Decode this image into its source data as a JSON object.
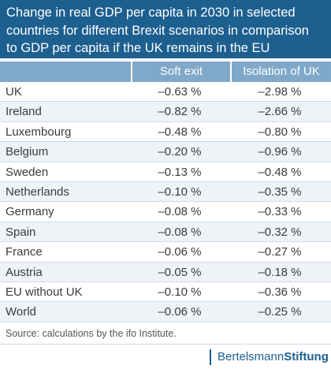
{
  "title_lines": [
    "Change in real GDP per capita in 2030 in selected",
    "countries for different Brexit scenarios in comparison",
    "to GDP per capita if the UK remains in the EU"
  ],
  "columns": [
    "",
    "Soft exit",
    "Isolation of UK"
  ],
  "rows": [
    [
      "UK",
      "–0.63 %",
      "–2.98 %"
    ],
    [
      "Ireland",
      "–0.82 %",
      "–2.66 %"
    ],
    [
      "Luxembourg",
      "–0.48 %",
      "–0.80 %"
    ],
    [
      "Belgium",
      "–0.20 %",
      "–0.96 %"
    ],
    [
      "Sweden",
      "–0.13 %",
      "–0.48 %"
    ],
    [
      "Netherlands",
      "–0.10 %",
      "–0.35 %"
    ],
    [
      "Germany",
      "–0.08 %",
      "–0.33 %"
    ],
    [
      "Spain",
      "–0.08 %",
      "–0.32 %"
    ],
    [
      "France",
      "–0.06 %",
      "–0.27 %"
    ],
    [
      "Austria",
      "–0.05 %",
      "–0.18 %"
    ],
    [
      "EU without UK",
      "–0.10 %",
      "–0.36 %"
    ],
    [
      "World",
      "–0.06 %",
      "–0.25 %"
    ]
  ],
  "source": "Source: calculations by the ifo Institute.",
  "brand": {
    "part1": "Bertelsmann",
    "part2": "Stiftung"
  },
  "colors": {
    "title_bg": "#1d5f8f",
    "header_bg": "#7fa8c9",
    "stripe": "#eef3f8"
  }
}
